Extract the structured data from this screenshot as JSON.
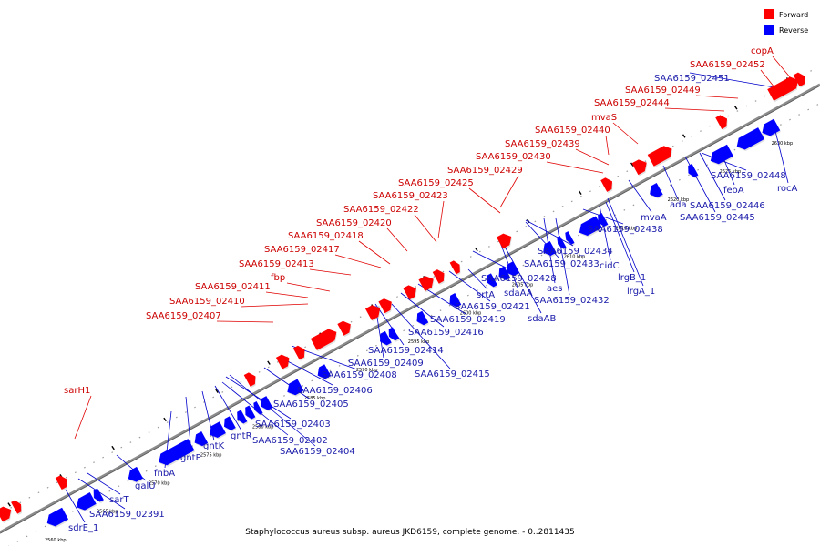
{
  "caption": "Staphylococcus aureus subsp. aureus JKD6159, complete genome. - 0..2811435",
  "legend": [
    {
      "label": "Forward",
      "color": "#ff0000"
    },
    {
      "label": "Reverse",
      "color": "#0000ff"
    }
  ],
  "colors": {
    "forward": "#ff0000",
    "reverse": "#0000ff",
    "backbone": "#8c8c8c",
    "label_forward": "#cc0000",
    "label_reverse": "#1a1aaa"
  },
  "ticks": [
    "2560 kbp",
    "2565 kbp",
    "2570 kbp",
    "2575 kbp",
    "2580 kbp",
    "2585 kbp",
    "2590 kbp",
    "2595 kbp",
    "2600 kbp",
    "2605 kbp",
    "2610 kbp",
    "2615 kbp",
    "2620 kbp",
    "2625 kbp",
    "2630 kbp",
    "2635 kbp"
  ],
  "forward_labels": [
    "copA",
    "SAA6159_02452",
    "SAA6159_02449",
    "SAA6159_02444",
    "mvaS",
    "SAA6159_02440",
    "SAA6159_02439",
    "SAA6159_02430",
    "SAA6159_02429",
    "SAA6159_02425",
    "SAA6159_02423",
    "SAA6159_02422",
    "SAA6159_02420",
    "SAA6159_02418",
    "SAA6159_02417",
    "SAA6159_02413",
    "fbp",
    "SAA6159_02411",
    "SAA6159_02410",
    "SAA6159_02407",
    "sarH1"
  ],
  "reverse_labels": [
    "SAA6159_02451",
    "SAA6159_02448",
    "rocA",
    "feoA",
    "ada",
    "SAA6159_02446",
    "SAA6159_02445",
    "mvaA",
    "SAA6159_02438",
    "cidC",
    "lrgB_1",
    "lrgA_1",
    "SAA6159_02434",
    "SAA6159_02433",
    "SAA6159_02432",
    "aes",
    "SAA6159_02428",
    "sdaAA",
    "sdaAB",
    "srtA",
    "SAA6159_02421",
    "SAA6159_02419",
    "SAA6159_02416",
    "SAA6159_02414",
    "SAA6159_02409",
    "SAA6159_02415",
    "SAA6159_02408",
    "SAA6159_02406",
    "SAA6159_02405",
    "SAA6159_02403",
    "SAA6159_02402",
    "SAA6159_02404",
    "gntR",
    "gntK",
    "gntP",
    "fnbA",
    "galU",
    "sarT",
    "SAA6159_02391",
    "sdrE_1"
  ]
}
